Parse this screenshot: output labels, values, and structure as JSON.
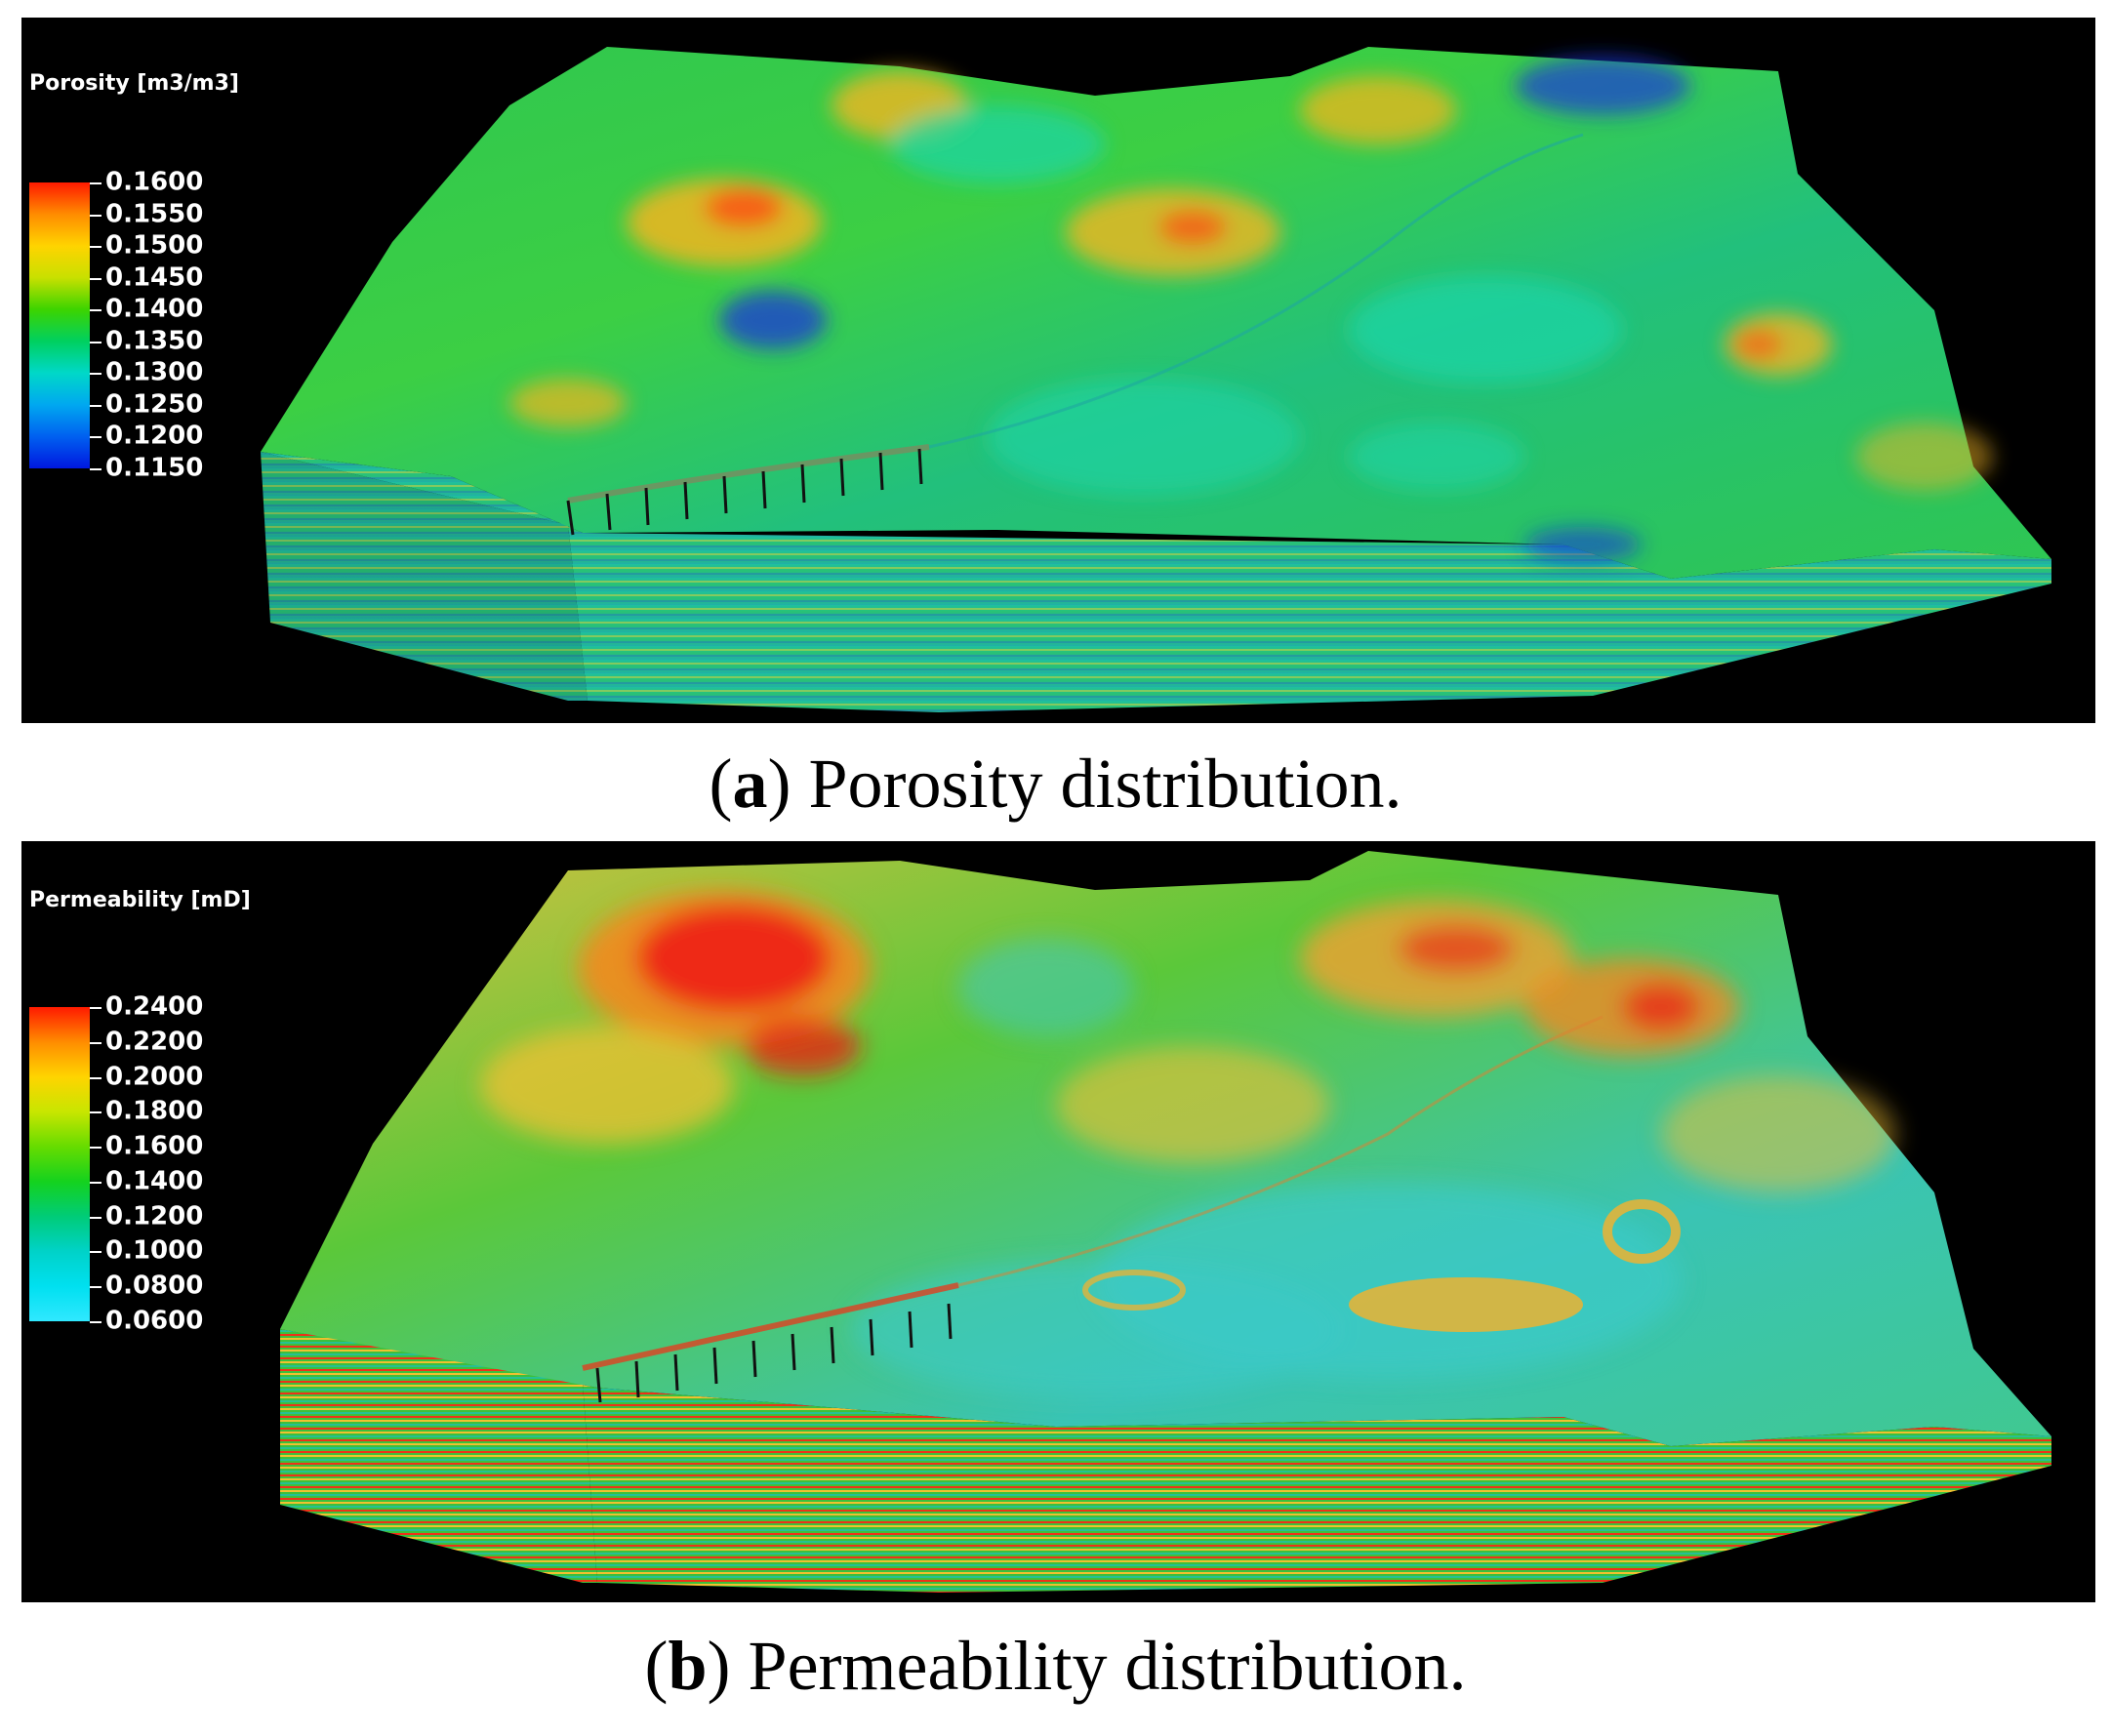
{
  "panels": [
    {
      "legend_title": "Porosity [m3/m3]",
      "legend_ticks": [
        "0.1600",
        "0.1550",
        "0.1500",
        "0.1450",
        "0.1400",
        "0.1350",
        "0.1300",
        "0.1250",
        "0.1200",
        "0.1150"
      ],
      "legend_colors": [
        "#ff1a00",
        "#ff8c00",
        "#ffd400",
        "#c8e000",
        "#3cd400",
        "#00d060",
        "#00d8c8",
        "#00a8f0",
        "#0060f0",
        "#0018e0"
      ],
      "caption_letter": "a",
      "caption_text": "Porosity distribution.",
      "dominant_colors": [
        "#22c455",
        "#1fd6a8",
        "#e8c53a",
        "#1736d8"
      ]
    },
    {
      "legend_title": "Permeability [mD]",
      "legend_ticks": [
        "0.2400",
        "0.2200",
        "0.2000",
        "0.1800",
        "0.1600",
        "0.1400",
        "0.1200",
        "0.1000",
        "0.0800",
        "0.0600"
      ],
      "legend_colors": [
        "#ff1a00",
        "#ff8c00",
        "#ffd400",
        "#c8e600",
        "#66dc00",
        "#14d21e",
        "#00cc78",
        "#00d2c8",
        "#00e0f0",
        "#30e8ff"
      ],
      "caption_letter": "b",
      "caption_text": "Permeability distribution.",
      "dominant_colors": [
        "#3fc833",
        "#39c8c8",
        "#e8b93a",
        "#e81818"
      ]
    }
  ]
}
